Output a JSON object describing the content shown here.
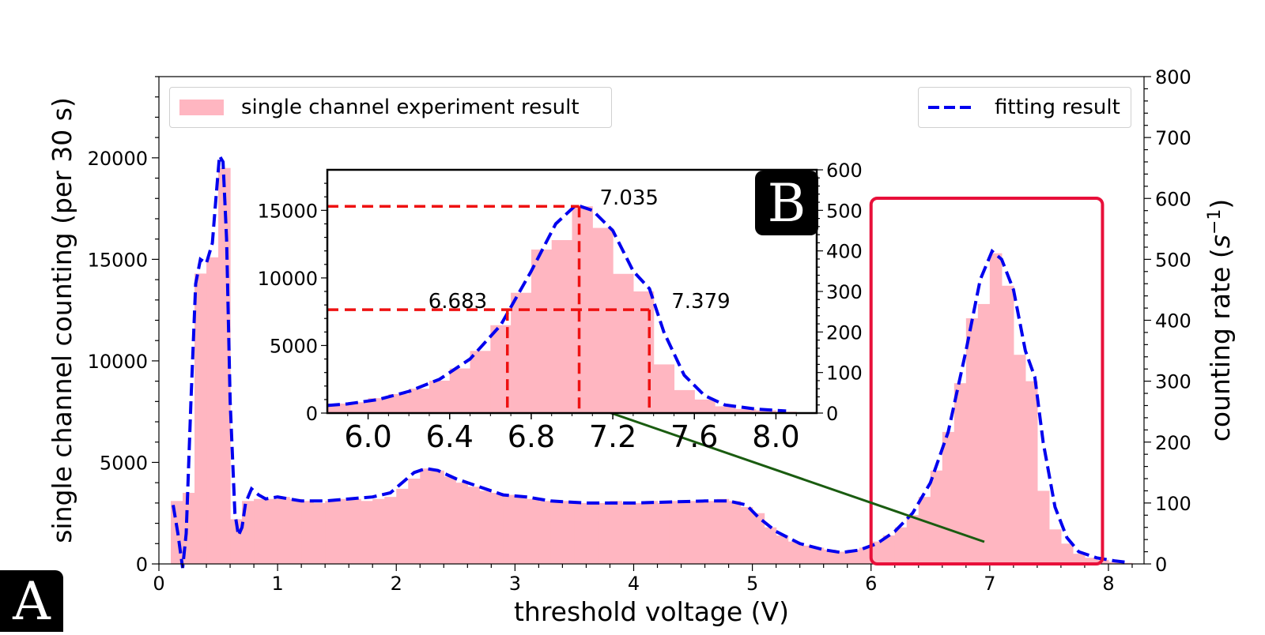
{
  "badges": {
    "main": "A",
    "inset": "B"
  },
  "legend": {
    "histogram_label": "single channel experiment result",
    "fit_label": "fitting result"
  },
  "colors": {
    "bar": "#ffb6c1",
    "fit": "#0000ee",
    "highlight": "#e8103a",
    "connector": "#1a5c10",
    "guide": "#ee1111"
  },
  "chart_data": [
    {
      "id": "main",
      "type": "bar",
      "xlabel": "threshold voltage (V)",
      "ylabel": "single channel counting (per 30 s)",
      "y2label_prefix": "counting rate (",
      "y2label_unit": "s",
      "y2label_exp": "−1",
      "y2label_suffix": ")",
      "xlim": [
        0,
        8.3
      ],
      "ylim": [
        0,
        24000
      ],
      "y2lim": [
        0,
        800
      ],
      "xticks": [
        0,
        1,
        2,
        3,
        4,
        5,
        6,
        7,
        8
      ],
      "yticks": [
        0,
        5000,
        10000,
        15000,
        20000
      ],
      "y2ticks": [
        0,
        100,
        200,
        300,
        400,
        500,
        600,
        700,
        800
      ],
      "bin_width": 0.1,
      "bins": [
        [
          0.1,
          3100
        ],
        [
          0.2,
          3500
        ],
        [
          0.3,
          14300
        ],
        [
          0.4,
          15100
        ],
        [
          0.5,
          19500
        ],
        [
          0.6,
          2200
        ],
        [
          0.7,
          3100
        ],
        [
          0.8,
          3200
        ],
        [
          0.9,
          3200
        ],
        [
          1.0,
          3300
        ],
        [
          1.1,
          3200
        ],
        [
          1.2,
          3100
        ],
        [
          1.3,
          3000
        ],
        [
          1.4,
          3100
        ],
        [
          1.5,
          3200
        ],
        [
          1.6,
          3200
        ],
        [
          1.7,
          3100
        ],
        [
          1.8,
          3200
        ],
        [
          1.9,
          3300
        ],
        [
          2.0,
          3700
        ],
        [
          2.1,
          4200
        ],
        [
          2.2,
          4700
        ],
        [
          2.3,
          4600
        ],
        [
          2.4,
          4300
        ],
        [
          2.5,
          4000
        ],
        [
          2.6,
          3800
        ],
        [
          2.7,
          3600
        ],
        [
          2.8,
          3500
        ],
        [
          2.9,
          3400
        ],
        [
          3.0,
          3300
        ],
        [
          3.1,
          3200
        ],
        [
          3.2,
          3100
        ],
        [
          3.3,
          3100
        ],
        [
          3.4,
          3100
        ],
        [
          3.5,
          3000
        ],
        [
          3.6,
          3000
        ],
        [
          3.7,
          3000
        ],
        [
          3.8,
          3100
        ],
        [
          3.9,
          3000
        ],
        [
          4.0,
          3000
        ],
        [
          4.1,
          3100
        ],
        [
          4.2,
          3000
        ],
        [
          4.3,
          3100
        ],
        [
          4.4,
          3100
        ],
        [
          4.5,
          3100
        ],
        [
          4.6,
          3100
        ],
        [
          4.7,
          3200
        ],
        [
          4.8,
          3100
        ],
        [
          4.9,
          2800
        ],
        [
          5.0,
          2500
        ],
        [
          5.1,
          1800
        ],
        [
          5.2,
          1400
        ],
        [
          5.3,
          1100
        ],
        [
          5.4,
          900
        ],
        [
          5.5,
          800
        ],
        [
          5.6,
          700
        ],
        [
          5.7,
          600
        ],
        [
          5.8,
          700
        ],
        [
          5.9,
          800
        ],
        [
          6.0,
          1100
        ],
        [
          6.1,
          1400
        ],
        [
          6.2,
          1800
        ],
        [
          6.3,
          2400
        ],
        [
          6.4,
          3300
        ],
        [
          6.5,
          4600
        ],
        [
          6.6,
          6500
        ],
        [
          6.7,
          8900
        ],
        [
          6.8,
          12100
        ],
        [
          6.9,
          12800
        ],
        [
          7.0,
          15300
        ],
        [
          7.1,
          13700
        ],
        [
          7.2,
          10300
        ],
        [
          7.3,
          9000
        ],
        [
          7.4,
          3600
        ],
        [
          7.5,
          1700
        ],
        [
          7.6,
          1000
        ],
        [
          7.7,
          500
        ],
        [
          7.8,
          300
        ],
        [
          7.9,
          200
        ],
        [
          8.0,
          100
        ],
        [
          8.1,
          50
        ]
      ],
      "fit": [
        [
          0.12,
          2900
        ],
        [
          0.16,
          1500
        ],
        [
          0.2,
          -200
        ],
        [
          0.23,
          1500
        ],
        [
          0.27,
          8000
        ],
        [
          0.31,
          13800
        ],
        [
          0.35,
          15000
        ],
        [
          0.4,
          14800
        ],
        [
          0.45,
          15800
        ],
        [
          0.48,
          18000
        ],
        [
          0.51,
          20100
        ],
        [
          0.54,
          19800
        ],
        [
          0.57,
          16000
        ],
        [
          0.6,
          8000
        ],
        [
          0.64,
          2500
        ],
        [
          0.67,
          1400
        ],
        [
          0.7,
          1800
        ],
        [
          0.73,
          3000
        ],
        [
          0.78,
          3700
        ],
        [
          0.84,
          3400
        ],
        [
          0.9,
          3200
        ],
        [
          1.0,
          3300
        ],
        [
          1.2,
          3100
        ],
        [
          1.4,
          3100
        ],
        [
          1.6,
          3200
        ],
        [
          1.8,
          3300
        ],
        [
          1.95,
          3500
        ],
        [
          2.05,
          4000
        ],
        [
          2.15,
          4500
        ],
        [
          2.25,
          4700
        ],
        [
          2.35,
          4600
        ],
        [
          2.5,
          4200
        ],
        [
          2.7,
          3800
        ],
        [
          2.9,
          3400
        ],
        [
          3.1,
          3300
        ],
        [
          3.3,
          3100
        ],
        [
          3.6,
          3000
        ],
        [
          4.0,
          3000
        ],
        [
          4.3,
          3050
        ],
        [
          4.6,
          3100
        ],
        [
          4.8,
          3100
        ],
        [
          4.95,
          2900
        ],
        [
          5.05,
          2300
        ],
        [
          5.2,
          1600
        ],
        [
          5.4,
          1000
        ],
        [
          5.6,
          700
        ],
        [
          5.75,
          560
        ],
        [
          5.9,
          680
        ],
        [
          6.05,
          1000
        ],
        [
          6.2,
          1600
        ],
        [
          6.35,
          2500
        ],
        [
          6.5,
          4000
        ],
        [
          6.65,
          6500
        ],
        [
          6.8,
          10500
        ],
        [
          6.92,
          14000
        ],
        [
          7.02,
          15400
        ],
        [
          7.1,
          15000
        ],
        [
          7.2,
          13500
        ],
        [
          7.3,
          10500
        ],
        [
          7.38,
          9200
        ],
        [
          7.45,
          6000
        ],
        [
          7.55,
          2800
        ],
        [
          7.65,
          1300
        ],
        [
          7.75,
          600
        ],
        [
          7.9,
          300
        ],
        [
          8.05,
          150
        ],
        [
          8.15,
          80
        ]
      ]
    },
    {
      "id": "inset",
      "type": "bar",
      "xlim": [
        5.8,
        8.2
      ],
      "ylim": [
        0,
        18000
      ],
      "y2lim": [
        0,
        600
      ],
      "xticks": [
        6.0,
        6.4,
        6.8,
        7.2,
        7.6,
        8.0
      ],
      "xtick_labels": [
        "6.0",
        "6.4",
        "6.8",
        "7.2",
        "7.6",
        "8.0"
      ],
      "yticks": [
        0,
        5000,
        10000,
        15000
      ],
      "y2ticks": [
        0,
        100,
        200,
        300,
        400,
        500,
        600
      ],
      "bin_width": 0.1,
      "peak_x": 7.035,
      "peak_y": 15300,
      "half_left_x": 6.683,
      "half_right_x": 7.379,
      "half_y": 7650,
      "annotations": {
        "peak": "7.035",
        "half_left": "6.683",
        "half_right": "7.379"
      }
    }
  ]
}
